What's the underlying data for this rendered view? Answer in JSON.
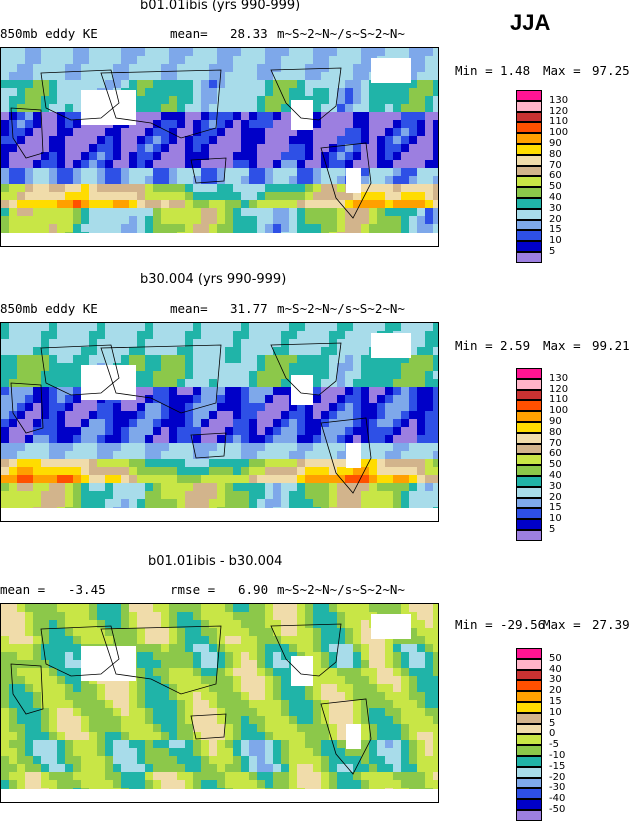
{
  "season": "JJA",
  "panels": [
    {
      "title": "b01.01ibis (yrs 990-999)",
      "left_label": "850mb eddy KE",
      "stat_label": "mean=",
      "stat_value": "28.33",
      "units": "m~S~2~N~/s~S~2~N~",
      "min_label": "Min =",
      "min_value": "1.48",
      "max_label": "Max =",
      "max_value": "97.25"
    },
    {
      "title": "b30.004 (yrs 990-999)",
      "left_label": "850mb eddy KE",
      "stat_label": "mean=",
      "stat_value": "31.77",
      "units": "m~S~2~N~/s~S~2~N~",
      "min_label": "Min =",
      "min_value": "2.59",
      "max_label": "Max =",
      "max_value": "99.21"
    },
    {
      "title": "b01.01ibis - b30.004",
      "left_label": "mean =",
      "left_value": "-3.45",
      "stat_label": "rmse =",
      "stat_value": "6.90",
      "units": "m~S~2~N~/s~S~2~N~",
      "min_label": "Min =",
      "min_value": "-29.56",
      "max_label": "Max =",
      "max_value": "27.39"
    }
  ],
  "chart_data": [
    {
      "type": "heatmap",
      "title": "b01.01ibis (yrs 990-999)",
      "variable": "850mb eddy KE",
      "units": "m~S~2~N~/s~S~2~N~",
      "mean": 28.33,
      "min": 1.48,
      "max": 97.25,
      "levels": [
        5,
        10,
        15,
        20,
        30,
        40,
        50,
        60,
        70,
        80,
        90,
        100,
        110,
        120,
        130
      ],
      "colors": [
        "#9c7fe0",
        "#0000c8",
        "#2e50e6",
        "#7ea8ea",
        "#a8dcea",
        "#20b4a8",
        "#8cc84a",
        "#c8e646",
        "#d2b48c",
        "#f0dcaa",
        "#ffdc00",
        "#ffa000",
        "#ff5000",
        "#c83232",
        "#ffb4c8",
        "#ff1493"
      ]
    },
    {
      "type": "heatmap",
      "title": "b30.004 (yrs 990-999)",
      "variable": "850mb eddy KE",
      "units": "m~S~2~N~/s~S~2~N~",
      "mean": 31.77,
      "min": 2.59,
      "max": 99.21,
      "levels": [
        5,
        10,
        15,
        20,
        30,
        40,
        50,
        60,
        70,
        80,
        90,
        100,
        110,
        120,
        130
      ],
      "colors": [
        "#9c7fe0",
        "#0000c8",
        "#2e50e6",
        "#7ea8ea",
        "#a8dcea",
        "#20b4a8",
        "#8cc84a",
        "#c8e646",
        "#d2b48c",
        "#f0dcaa",
        "#ffdc00",
        "#ffa000",
        "#ff5000",
        "#c83232",
        "#ffb4c8",
        "#ff1493"
      ]
    },
    {
      "type": "heatmap",
      "title": "b01.01ibis - b30.004",
      "units": "m~S~2~N~/s~S~2~N~",
      "mean": -3.45,
      "rmse": 6.9,
      "min": -29.56,
      "max": 27.39,
      "levels": [
        -50,
        -40,
        -30,
        -20,
        -15,
        -10,
        -5,
        0,
        5,
        10,
        15,
        20,
        30,
        40,
        50
      ],
      "colors": [
        "#9c7fe0",
        "#0000c8",
        "#2e50e6",
        "#7ea8ea",
        "#a8dcea",
        "#20b4a8",
        "#8cc84a",
        "#c8e646",
        "#f0dcaa",
        "#d2b48c",
        "#ffdc00",
        "#ffa000",
        "#ff5000",
        "#c83232",
        "#ffb4c8",
        "#ff1493"
      ]
    }
  ]
}
